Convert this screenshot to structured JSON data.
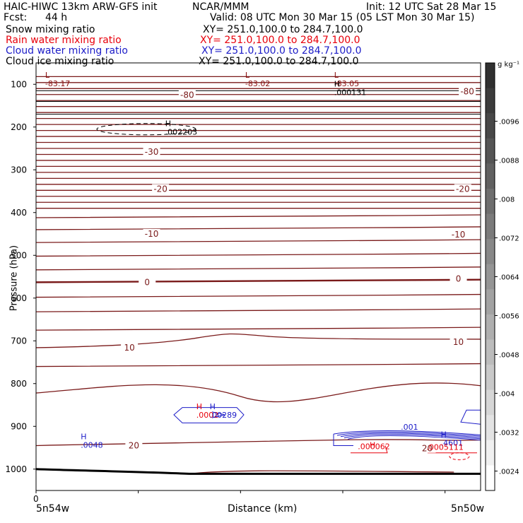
{
  "header": {
    "model_title": "HAIC-HIWC 13km ARW-GFS init",
    "org": "NCAR/MMM",
    "init_time": "Init: 12 UTC Sat 28 Mar 15",
    "fcst_label": "Fcst:",
    "fcst_value": "44 h",
    "valid_time": "Valid: 08 UTC Mon 30 Mar 15 (05 LST Mon 30 Mar 15)"
  },
  "fields": [
    {
      "name": "Snow mixing ratio",
      "xy": "XY= 251.0,100.0 to 284.7,100.0",
      "color": "#000000"
    },
    {
      "name": "Rain water mixing ratio",
      "xy": "XY= 251.0,100.0 to 284.7,100.0",
      "color": "#e8000b"
    },
    {
      "name": "Cloud water mixing ratio",
      "xy": "XY= 251.0,100.0 to 284.7,100.0",
      "color": "#1c1cc8"
    },
    {
      "name": "Cloud ice mixing ratio",
      "xy": "XY= 251.0,100.0 to 284.7,100.0",
      "color": "#000000"
    }
  ],
  "chart_data": {
    "type": "cross-section contour",
    "ylabel": "Pressure (hPa)",
    "xlabel": "Distance (km)",
    "y_axis": {
      "ticks": [
        100,
        200,
        300,
        400,
        500,
        600,
        700,
        800,
        900,
        1000
      ],
      "range": [
        50,
        1050
      ]
    },
    "x_axis": {
      "origin_label": "0",
      "left_label": "5n54w",
      "right_label": "5n50w"
    },
    "colorbar": {
      "unit": "g kg⁻¹",
      "labels": [
        ".0096",
        ".0088",
        ".008",
        ".0072",
        ".0064",
        ".0056",
        ".0048",
        ".004",
        ".0032",
        ".0024"
      ],
      "shades": [
        "#303030",
        "#3c3c3c",
        "#484848",
        "#555555",
        "#616161",
        "#6e6e6e",
        "#7b7b7b",
        "#888888",
        "#959595",
        "#a2a2a2",
        "#afafaf",
        "#bcbcbc",
        "#c9c9c9",
        "#d6d6d6",
        "#e3e3e3",
        "#f0f0f0",
        "#ffffff"
      ]
    },
    "temperature_labels": [
      {
        "text": "-80",
        "x": 0.34,
        "p": 125
      },
      {
        "text": "-80",
        "x": 0.97,
        "p": 117
      },
      {
        "text": "-30",
        "x": 0.26,
        "p": 258
      },
      {
        "text": "-20",
        "x": 0.28,
        "p": 345
      },
      {
        "text": "-20",
        "x": 0.96,
        "p": 345
      },
      {
        "text": "-10",
        "x": 0.26,
        "p": 450
      },
      {
        "text": "-10",
        "x": 0.95,
        "p": 452
      },
      {
        "text": "0",
        "x": 0.25,
        "p": 563
      },
      {
        "text": "0",
        "x": 0.95,
        "p": 555
      },
      {
        "text": "10",
        "x": 0.21,
        "p": 716
      },
      {
        "text": "10",
        "x": 0.95,
        "p": 703
      },
      {
        "text": "20",
        "x": 0.22,
        "p": 945
      },
      {
        "text": "20",
        "x": 0.88,
        "p": 952
      }
    ],
    "extrema": [
      {
        "kind": "L",
        "value": "-83.17",
        "x": 0.03,
        "p": 85,
        "color": "#8b1010"
      },
      {
        "kind": "L",
        "value": "-83.02",
        "x": 0.48,
        "p": 85,
        "color": "#8b1010"
      },
      {
        "kind": "L",
        "value": "-83.05",
        "x": 0.68,
        "p": 85,
        "color": "#8b1010"
      },
      {
        "kind": "H",
        "value": ".000131",
        "x": 0.68,
        "p": 105,
        "color": "#000000"
      },
      {
        "kind": "H",
        "value": ".002203",
        "x": 0.3,
        "p": 198,
        "color": "#000000"
      },
      {
        "kind": "H",
        "value": ".0048",
        "x": 0.11,
        "p": 930,
        "color": "#1c1cc8"
      },
      {
        "kind": "H",
        "value": ".0002",
        "x": 0.37,
        "p": 860,
        "color": "#e8000b"
      },
      {
        "kind": "H",
        "value": ".00289",
        "x": 0.4,
        "p": 860,
        "color": "#1c1cc8"
      },
      {
        "kind": "H",
        "value": "H",
        "x": 0.76,
        "p": 950,
        "color": "#e8000b"
      },
      {
        "kind": "H",
        "value": ".4601",
        "x": 0.92,
        "p": 925,
        "color": "#1c1cc8"
      }
    ],
    "extra_labels": [
      {
        "text": ".001",
        "x": 0.84,
        "p": 908,
        "color": "#1c1cc8"
      },
      {
        "text": ".000062",
        "x": 0.76,
        "p": 953,
        "color": "#e8000b"
      },
      {
        "text": ".0005111",
        "x": 0.92,
        "p": 955,
        "color": "#e8000b"
      }
    ]
  }
}
